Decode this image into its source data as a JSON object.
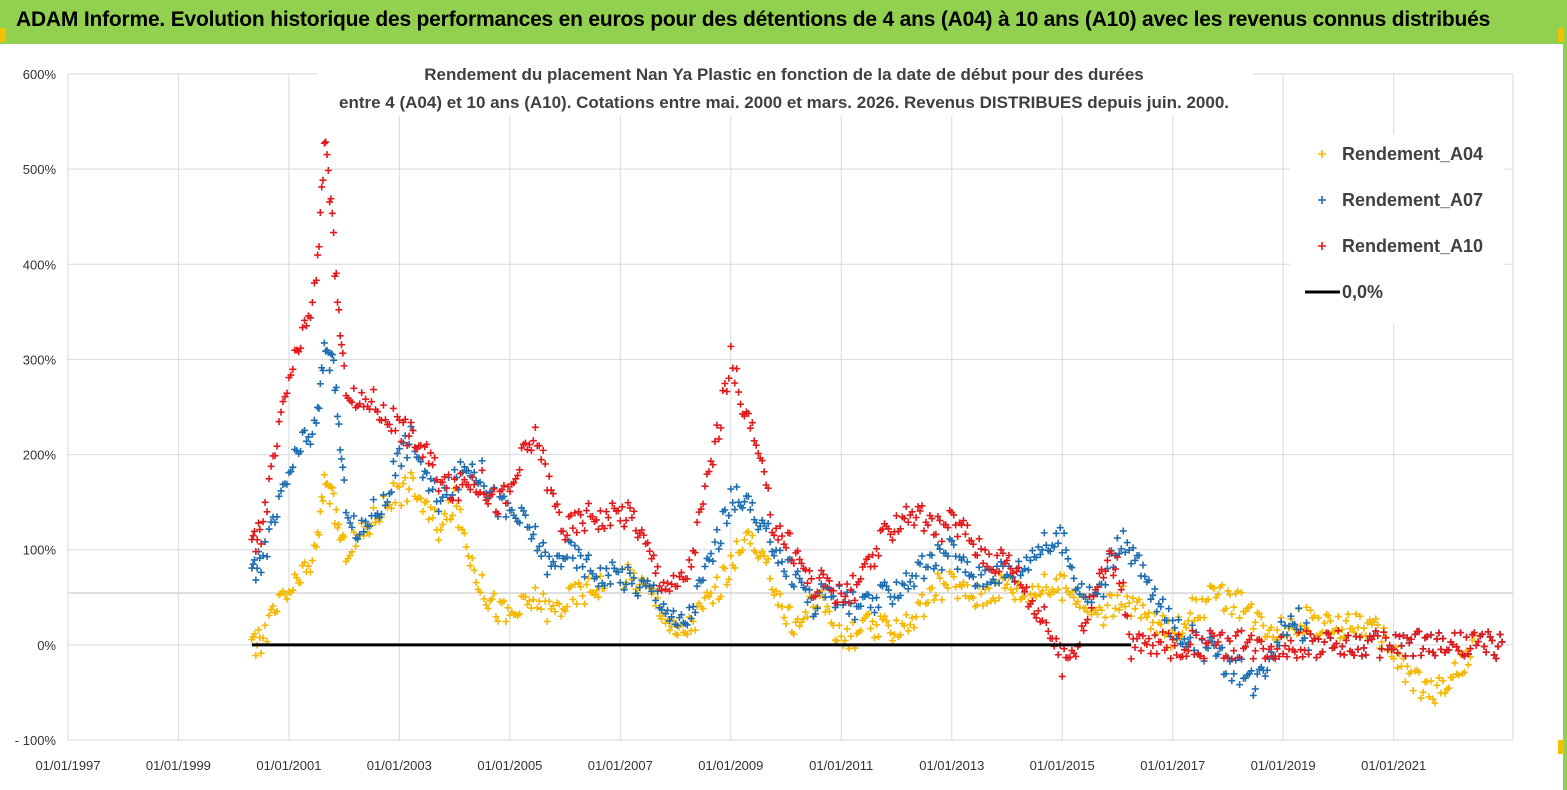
{
  "banner": {
    "title": "ADAM Informe. Evolution historique des performances en euros pour des détentions de 4 ans (A04) à 10 ans (A10) avec les revenus connus distribués"
  },
  "colors": {
    "banner_bg": "#92d050",
    "A04": "#f5b800",
    "A07": "#1f6fb0",
    "A10": "#e31a1c",
    "zero_line": "#000000",
    "grid": "#d9d9d9"
  },
  "chart_data": {
    "type": "scatter",
    "title_line1": "Rendement du placement Nan Ya Plastic  en fonction de la date de début pour des durées",
    "title_line2": "entre 4 (A04) et 10 ans (A10).  Cotations entre mai. 2000 et mars. 2026. Revenus DISTRIBUES depuis juin. 2000.",
    "xlabel": "",
    "ylabel": "",
    "x_ticks": [
      "01/01/1997",
      "01/01/1999",
      "01/01/2001",
      "01/01/2003",
      "01/01/2005",
      "01/01/2007",
      "01/01/2009",
      "01/01/2011",
      "01/01/2013",
      "01/01/2015",
      "01/01/2017",
      "01/01/2019",
      "01/01/2021"
    ],
    "x_range": [
      "1997-01-01",
      "2023-03-01"
    ],
    "y_ticks": [
      "600%",
      "500%",
      "400%",
      "300%",
      "200%",
      "100%",
      "0%",
      "- 100%"
    ],
    "ylim": [
      -100,
      600
    ],
    "grid": true,
    "legend_position": "top-right",
    "series": [
      {
        "name": "Rendement_A04",
        "marker": "+",
        "x": [
          "2000-05-01",
          "2000-07-01",
          "2000-10-01",
          "2001-01-01",
          "2001-04-01",
          "2001-07-01",
          "2001-09-01",
          "2001-11-01",
          "2002-01-01",
          "2002-04-01",
          "2002-07-01",
          "2002-10-01",
          "2003-01-01",
          "2003-04-01",
          "2003-07-01",
          "2003-10-01",
          "2004-01-01",
          "2004-04-01",
          "2004-07-01",
          "2004-10-01",
          "2005-01-01",
          "2005-04-01",
          "2005-07-01",
          "2005-10-01",
          "2006-01-01",
          "2006-04-01",
          "2006-07-01",
          "2006-10-01",
          "2007-01-01",
          "2007-04-01",
          "2007-07-01",
          "2007-10-01",
          "2008-01-01",
          "2008-04-01",
          "2008-07-01",
          "2008-10-01",
          "2009-01-01",
          "2009-04-01",
          "2009-07-01",
          "2009-10-01",
          "2010-01-01",
          "2010-04-01",
          "2010-07-01",
          "2010-10-01",
          "2011-01-01",
          "2011-04-01",
          "2011-07-01",
          "2011-10-01",
          "2012-01-01",
          "2012-04-01",
          "2012-07-01",
          "2012-10-01",
          "2013-01-01",
          "2013-04-01",
          "2013-07-01",
          "2013-10-01",
          "2014-01-01",
          "2014-04-01",
          "2014-07-01",
          "2014-10-01",
          "2015-01-01",
          "2015-04-01",
          "2015-07-01",
          "2015-10-01",
          "2016-01-01",
          "2016-04-01",
          "2016-07-01",
          "2016-10-01",
          "2017-01-01",
          "2017-04-01",
          "2017-07-01",
          "2017-10-01",
          "2018-01-01",
          "2018-04-01",
          "2018-07-01",
          "2018-10-01",
          "2019-01-01",
          "2019-04-01",
          "2019-07-01",
          "2019-10-01",
          "2020-01-01",
          "2020-04-01",
          "2020-07-01",
          "2020-10-01",
          "2021-01-01",
          "2021-04-01",
          "2021-07-01",
          "2021-10-01",
          "2022-01-01",
          "2022-04-01",
          "2022-07-01",
          "2022-10-01",
          "2023-01-01"
        ],
        "y": [
          -5,
          5,
          35,
          55,
          70,
          100,
          180,
          140,
          100,
          110,
          130,
          150,
          160,
          170,
          140,
          120,
          150,
          100,
          60,
          40,
          30,
          40,
          50,
          35,
          45,
          55,
          60,
          70,
          75,
          70,
          60,
          40,
          10,
          20,
          40,
          60,
          80,
          120,
          90,
          70,
          30,
          20,
          50,
          40,
          5,
          10,
          20,
          15,
          20,
          25,
          40,
          60,
          65,
          55,
          50,
          60,
          65,
          55,
          60,
          60,
          60,
          55,
          40,
          30,
          50,
          45,
          30,
          20,
          10,
          30,
          40,
          50,
          50,
          40,
          30,
          20,
          20,
          25,
          25,
          20,
          15,
          25,
          20,
          10,
          -10,
          -30,
          -45,
          -50,
          -40,
          -20,
          0,
          0,
          0
        ]
      },
      {
        "name": "Rendement_A07",
        "marker": "+",
        "x": [
          "2000-05-01",
          "2000-07-01",
          "2000-10-01",
          "2001-01-01",
          "2001-04-01",
          "2001-07-01",
          "2001-09-01",
          "2001-11-01",
          "2002-01-01",
          "2002-04-01",
          "2002-07-01",
          "2002-10-01",
          "2003-01-01",
          "2003-04-01",
          "2003-07-01",
          "2003-10-01",
          "2004-01-01",
          "2004-04-01",
          "2004-07-01",
          "2004-10-01",
          "2005-01-01",
          "2005-04-01",
          "2005-07-01",
          "2005-10-01",
          "2006-01-01",
          "2006-04-01",
          "2006-07-01",
          "2006-10-01",
          "2007-01-01",
          "2007-04-01",
          "2007-07-01",
          "2007-10-01",
          "2008-01-01",
          "2008-04-01",
          "2008-07-01",
          "2008-10-01",
          "2009-01-01",
          "2009-04-01",
          "2009-07-01",
          "2009-10-01",
          "2010-01-01",
          "2010-04-01",
          "2010-07-01",
          "2010-10-01",
          "2011-01-01",
          "2011-04-01",
          "2011-07-01",
          "2011-10-01",
          "2012-01-01",
          "2012-04-01",
          "2012-07-01",
          "2012-10-01",
          "2013-01-01",
          "2013-04-01",
          "2013-07-01",
          "2013-10-01",
          "2014-01-01",
          "2014-04-01",
          "2014-07-01",
          "2014-10-01",
          "2015-01-01",
          "2015-04-01",
          "2015-07-01",
          "2015-10-01",
          "2016-01-01",
          "2016-04-01",
          "2016-07-01",
          "2016-10-01",
          "2017-01-01",
          "2017-04-01",
          "2017-07-01",
          "2017-10-01",
          "2018-01-01",
          "2018-04-01",
          "2018-07-01",
          "2018-10-01",
          "2019-01-01",
          "2019-04-01",
          "2019-07-01",
          "2019-10-01",
          "2020-01-01",
          "2020-04-01",
          "2020-07-01",
          "2020-10-01",
          "2021-01-01",
          "2021-04-01",
          "2021-07-01",
          "2021-10-01",
          "2022-01-01",
          "2022-04-01",
          "2022-07-01",
          "2022-10-01",
          "2023-01-01"
        ],
        "y": [
          70,
          90,
          130,
          180,
          210,
          230,
          320,
          280,
          160,
          110,
          140,
          150,
          200,
          220,
          170,
          150,
          170,
          190,
          180,
          150,
          140,
          130,
          110,
          80,
          100,
          90,
          80,
          70,
          75,
          65,
          60,
          50,
          20,
          30,
          70,
          110,
          150,
          160,
          120,
          110,
          80,
          70,
          40,
          60,
          50,
          40,
          40,
          50,
          60,
          70,
          80,
          90,
          100,
          80,
          70,
          80,
          75,
          80,
          100,
          105,
          110,
          70,
          50,
          60,
          110,
          100,
          70,
          40,
          20,
          10,
          0,
          -10,
          -20,
          -30,
          -40,
          -10,
          20,
          30,
          0,
          0,
          0,
          0,
          0,
          0,
          0,
          0,
          0,
          0,
          0,
          0,
          0,
          0,
          0
        ]
      },
      {
        "name": "Rendement_A10",
        "marker": "+",
        "x": [
          "2000-05-01",
          "2000-07-01",
          "2000-10-01",
          "2001-01-01",
          "2001-04-01",
          "2001-07-01",
          "2001-09-01",
          "2001-11-01",
          "2002-01-01",
          "2002-04-01",
          "2002-07-01",
          "2002-10-01",
          "2003-01-01",
          "2003-04-01",
          "2003-07-01",
          "2003-10-01",
          "2004-01-01",
          "2004-04-01",
          "2004-07-01",
          "2004-10-01",
          "2005-01-01",
          "2005-04-01",
          "2005-07-01",
          "2005-10-01",
          "2006-01-01",
          "2006-04-01",
          "2006-07-01",
          "2006-10-01",
          "2007-01-01",
          "2007-04-01",
          "2007-07-01",
          "2007-10-01",
          "2008-01-01",
          "2008-04-01",
          "2008-07-01",
          "2008-10-01",
          "2009-01-01",
          "2009-04-01",
          "2009-07-01",
          "2009-10-01",
          "2010-01-01",
          "2010-04-01",
          "2010-07-01",
          "2010-10-01",
          "2011-01-01",
          "2011-04-01",
          "2011-07-01",
          "2011-10-01",
          "2012-01-01",
          "2012-04-01",
          "2012-07-01",
          "2012-10-01",
          "2013-01-01",
          "2013-04-01",
          "2013-07-01",
          "2013-10-01",
          "2014-01-01",
          "2014-04-01",
          "2014-07-01",
          "2014-10-01",
          "2015-01-01",
          "2015-04-01",
          "2015-07-01",
          "2015-10-01",
          "2016-01-01",
          "2016-04-01",
          "2016-07-01",
          "2016-10-01",
          "2017-01-01",
          "2017-04-01",
          "2017-07-01",
          "2017-10-01",
          "2018-01-01",
          "2018-04-01",
          "2018-07-01",
          "2018-10-01",
          "2019-01-01",
          "2019-04-01",
          "2019-07-01",
          "2019-10-01",
          "2020-01-01",
          "2020-04-01",
          "2020-07-01",
          "2020-10-01",
          "2021-01-01",
          "2021-04-01",
          "2021-07-01",
          "2021-10-01",
          "2022-01-01",
          "2022-04-01",
          "2022-07-01",
          "2022-10-01",
          "2023-01-01"
        ],
        "y": [
          100,
          120,
          200,
          280,
          320,
          380,
          540,
          400,
          280,
          250,
          260,
          240,
          230,
          220,
          200,
          170,
          160,
          175,
          170,
          150,
          160,
          200,
          220,
          160,
          120,
          130,
          140,
          130,
          140,
          135,
          100,
          70,
          60,
          80,
          150,
          220,
          300,
          250,
          200,
          130,
          110,
          90,
          60,
          70,
          50,
          60,
          80,
          110,
          130,
          140,
          130,
          120,
          130,
          120,
          100,
          90,
          90,
          70,
          40,
          20,
          -20,
          0,
          40,
          80,
          90,
          0,
          0,
          0,
          0,
          0,
          0,
          0,
          0,
          0,
          0,
          0,
          0,
          0,
          0,
          0,
          0,
          0,
          0,
          0,
          0,
          0,
          0,
          0,
          0,
          0,
          0,
          0,
          0
        ]
      },
      {
        "name": "0,0%",
        "type": "line",
        "x": [
          "2000-05-01",
          "2016-04-01"
        ],
        "y": [
          0,
          0
        ]
      }
    ]
  }
}
